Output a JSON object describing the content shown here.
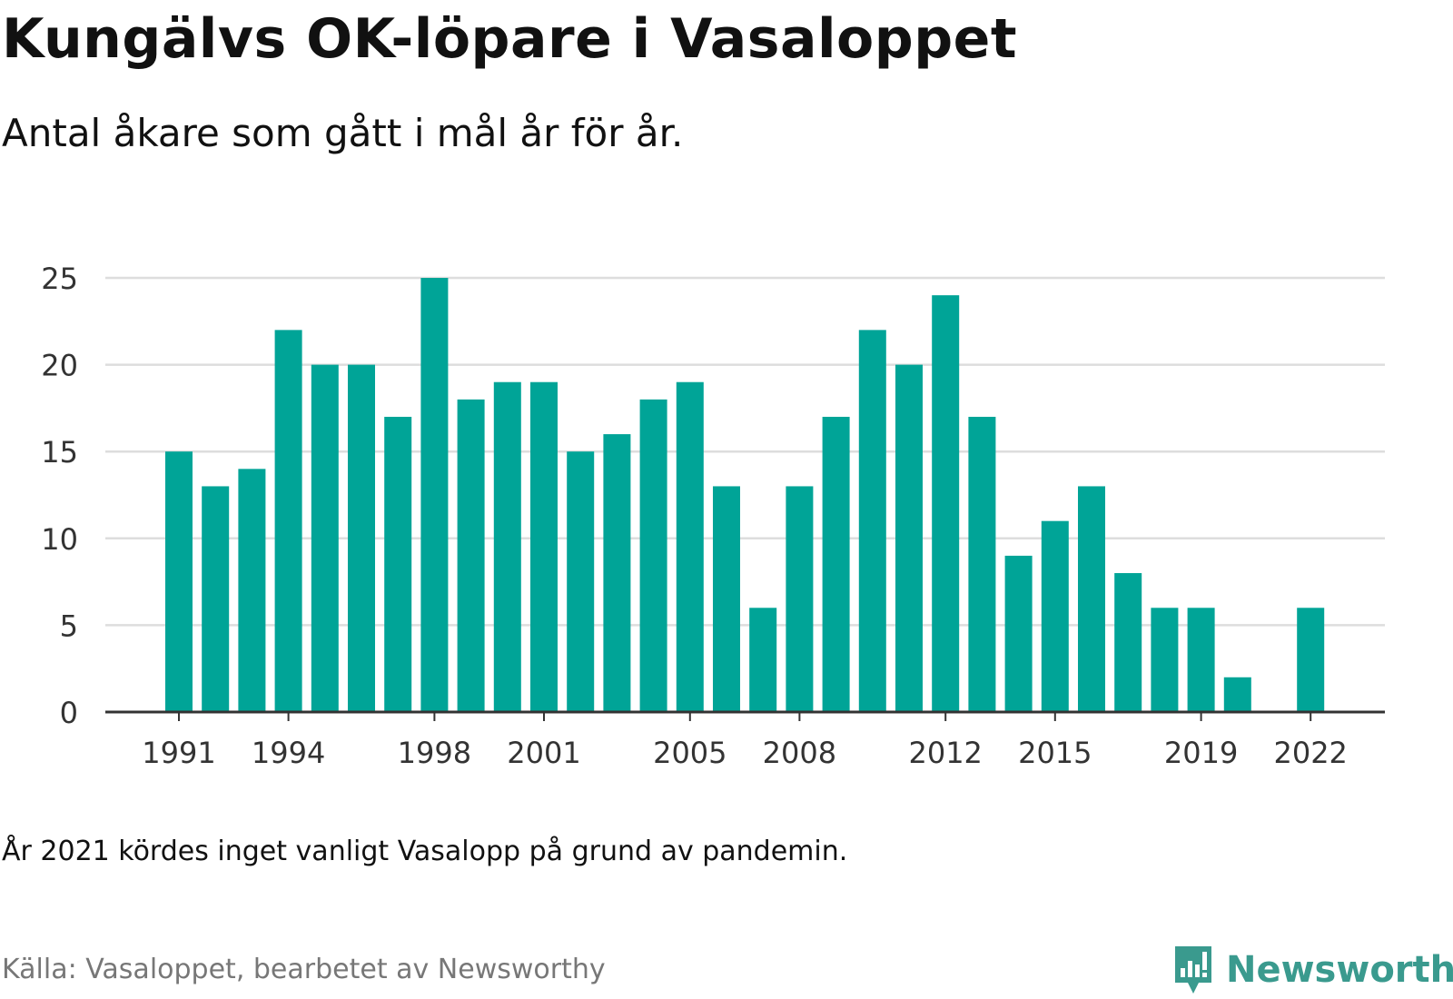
{
  "header": {
    "title": "Kungälvs OK-löpare i Vasaloppet",
    "subtitle": "Antal åkare som gått i mål år för år."
  },
  "footer": {
    "note": "År 2021 kördes inget vanligt Vasalopp på grund av pandemin.",
    "source": "Källa: Vasaloppet, bearbetet av Newsworthy",
    "brand": "Newsworthy",
    "brand_icon": "newsworthy-logo-icon"
  },
  "colors": {
    "bar": "#00a497",
    "grid": "#dddddd",
    "axis": "#333333",
    "text": "#333333",
    "brand": "#3a9a8e"
  },
  "chart_data": {
    "type": "bar",
    "title": "Kungälvs OK-löpare i Vasaloppet",
    "subtitle": "Antal åkare som gått i mål år för år.",
    "xlabel": "",
    "ylabel": "",
    "ylim": [
      0,
      25
    ],
    "yticks": [
      0,
      5,
      10,
      15,
      20,
      25
    ],
    "xtick_labels": [
      "1991",
      "1994",
      "1998",
      "2001",
      "2005",
      "2008",
      "2012",
      "2015",
      "2019",
      "2022"
    ],
    "grid": true,
    "legend": "none",
    "categories": [
      1991,
      1992,
      1993,
      1994,
      1995,
      1996,
      1997,
      1998,
      1999,
      2000,
      2001,
      2002,
      2003,
      2004,
      2005,
      2006,
      2007,
      2008,
      2009,
      2010,
      2011,
      2012,
      2013,
      2014,
      2015,
      2016,
      2017,
      2018,
      2019,
      2020,
      2021,
      2022
    ],
    "values": [
      15,
      13,
      14,
      22,
      20,
      20,
      17,
      25,
      18,
      19,
      19,
      15,
      16,
      18,
      19,
      13,
      6,
      13,
      17,
      22,
      20,
      24,
      17,
      9,
      11,
      13,
      8,
      6,
      6,
      2,
      null,
      6
    ]
  }
}
